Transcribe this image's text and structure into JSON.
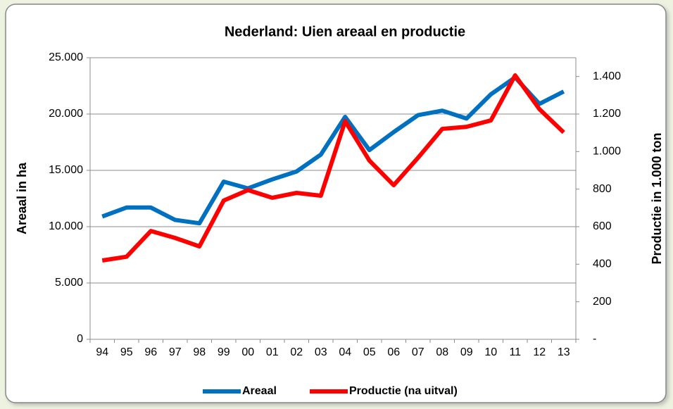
{
  "chart_data": {
    "type": "line",
    "title": "Nederland: Uien areaal en productie",
    "y_label": "Areaal in ha",
    "y2_label": "Productie in 1.000 ton",
    "categories": [
      "94",
      "95",
      "96",
      "97",
      "98",
      "99",
      "00",
      "01",
      "02",
      "03",
      "04",
      "05",
      "06",
      "07",
      "08",
      "09",
      "10",
      "11",
      "12",
      "13"
    ],
    "series": [
      {
        "name": "Areaal",
        "color": "#0070c0",
        "values": [
          10900,
          11700,
          11700,
          10600,
          10300,
          14000,
          13400,
          14200,
          14900,
          16400,
          19750,
          16800,
          18400,
          19900,
          20300,
          19600,
          21750,
          23250,
          20900,
          22000
        ]
      },
      {
        "name": "Productie (na uitval)",
        "color": "#ff0000",
        "axis": "y2",
        "values": [
          420,
          440,
          577,
          540,
          495,
          739,
          795,
          754,
          780,
          765,
          1162,
          952,
          821,
          967,
          1121,
          1132,
          1166,
          1406,
          1226,
          1102
        ]
      }
    ],
    "ylim": [
      0,
      25000
    ],
    "yticks": [
      0,
      {
        "value": 5000,
        "label": "5.000"
      },
      {
        "value": 10000,
        "label": "10.000"
      },
      {
        "value": 15000,
        "label": "15.000"
      },
      {
        "value": 20000,
        "label": "20.000"
      },
      {
        "value": 25000,
        "label": "25.000"
      }
    ],
    "y2lim": [
      0,
      1500
    ],
    "y2ticks": [
      {
        "value": 0,
        "label": "-"
      },
      200,
      400,
      600,
      800,
      {
        "value": 1000,
        "label": "1.000"
      },
      {
        "value": 1200,
        "label": "1.200"
      },
      {
        "value": 1400,
        "label": "1.400"
      }
    ],
    "grid": true,
    "legend": "bottom"
  }
}
